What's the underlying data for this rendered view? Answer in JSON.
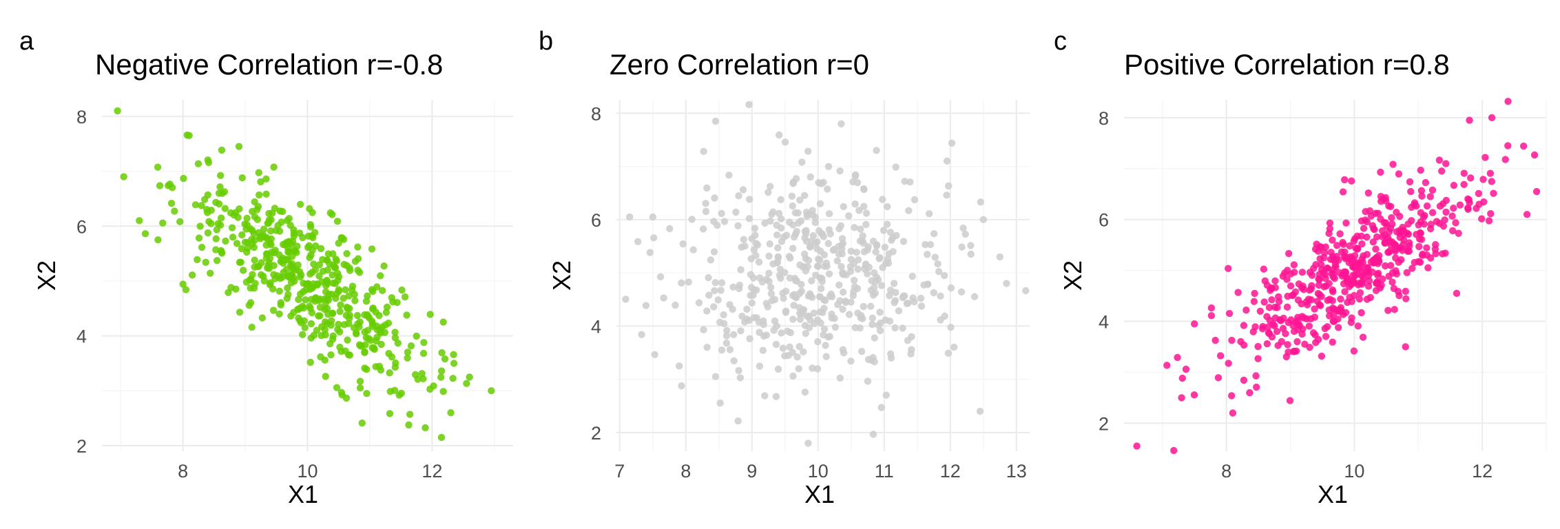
{
  "chart_data": [
    {
      "type": "scatter",
      "panel_label": "a",
      "title": "Negative Correlation r=-0.8",
      "xlabel": "X1",
      "ylabel": "X2",
      "xlim": [
        6.7,
        13.3
      ],
      "ylim": [
        1.9,
        8.3
      ],
      "xticks": [
        8,
        10,
        12
      ],
      "yticks": [
        2,
        4,
        6,
        8
      ],
      "grid": true,
      "color": "#66CC00",
      "correlation": -0.8,
      "n_points": 500,
      "x_mean": 10,
      "x_sd": 1,
      "y_mean": 5,
      "y_sd": 1,
      "extreme_points": [
        {
          "x": 6.95,
          "y": 8.1
        },
        {
          "x": 7.05,
          "y": 6.9
        },
        {
          "x": 7.3,
          "y": 6.1
        },
        {
          "x": 7.6,
          "y": 5.75
        },
        {
          "x": 8.1,
          "y": 7.65
        },
        {
          "x": 8.9,
          "y": 7.45
        },
        {
          "x": 12.15,
          "y": 2.15
        },
        {
          "x": 12.3,
          "y": 2.6
        },
        {
          "x": 12.95,
          "y": 3.0
        },
        {
          "x": 12.6,
          "y": 3.25
        },
        {
          "x": 12.35,
          "y": 3.5
        },
        {
          "x": 10.95,
          "y": 2.95
        }
      ]
    },
    {
      "type": "scatter",
      "panel_label": "b",
      "title": "Zero Correlation r=0",
      "xlabel": "X1",
      "ylabel": "X2",
      "xlim": [
        6.95,
        13.2
      ],
      "ylim": [
        1.65,
        8.25
      ],
      "xticks": [
        7,
        8,
        9,
        10,
        11,
        12,
        13
      ],
      "yticks": [
        2,
        4,
        6,
        8
      ],
      "grid": true,
      "color": "#CCCCCC",
      "correlation": 0,
      "n_points": 500,
      "x_mean": 10,
      "x_sd": 1,
      "y_mean": 5,
      "y_sd": 1,
      "extreme_points": [
        {
          "x": 7.15,
          "y": 6.05
        },
        {
          "x": 7.5,
          "y": 6.05
        },
        {
          "x": 8.45,
          "y": 7.85
        },
        {
          "x": 10.35,
          "y": 7.8
        },
        {
          "x": 9.85,
          "y": 1.8
        },
        {
          "x": 12.45,
          "y": 2.4
        },
        {
          "x": 12.85,
          "y": 4.8
        },
        {
          "x": 12.75,
          "y": 5.3
        },
        {
          "x": 11.95,
          "y": 7.1
        },
        {
          "x": 8.45,
          "y": 3.05
        },
        {
          "x": 7.9,
          "y": 3.25
        },
        {
          "x": 12.5,
          "y": 6.0
        }
      ]
    },
    {
      "type": "scatter",
      "panel_label": "c",
      "title": "Positive Correlation r=0.8",
      "xlabel": "X1",
      "ylabel": "X2",
      "xlim": [
        6.4,
        13.0
      ],
      "ylim": [
        1.45,
        8.35
      ],
      "xticks": [
        8,
        10,
        12
      ],
      "yticks": [
        2,
        4,
        6,
        8
      ],
      "grid": true,
      "color": "#FF1493",
      "correlation": 0.8,
      "n_points": 500,
      "x_mean": 10,
      "x_sd": 1,
      "y_mean": 5,
      "y_sd": 1,
      "extreme_points": [
        {
          "x": 6.6,
          "y": 1.55
        },
        {
          "x": 7.3,
          "y": 2.5
        },
        {
          "x": 7.5,
          "y": 3.95
        },
        {
          "x": 8.1,
          "y": 2.2
        },
        {
          "x": 12.15,
          "y": 8.0
        },
        {
          "x": 11.8,
          "y": 7.95
        },
        {
          "x": 12.85,
          "y": 6.55
        },
        {
          "x": 12.7,
          "y": 6.1
        },
        {
          "x": 11.95,
          "y": 6.3
        },
        {
          "x": 12.4,
          "y": 7.45
        },
        {
          "x": 10.8,
          "y": 3.5
        },
        {
          "x": 11.6,
          "y": 4.55
        }
      ]
    }
  ]
}
